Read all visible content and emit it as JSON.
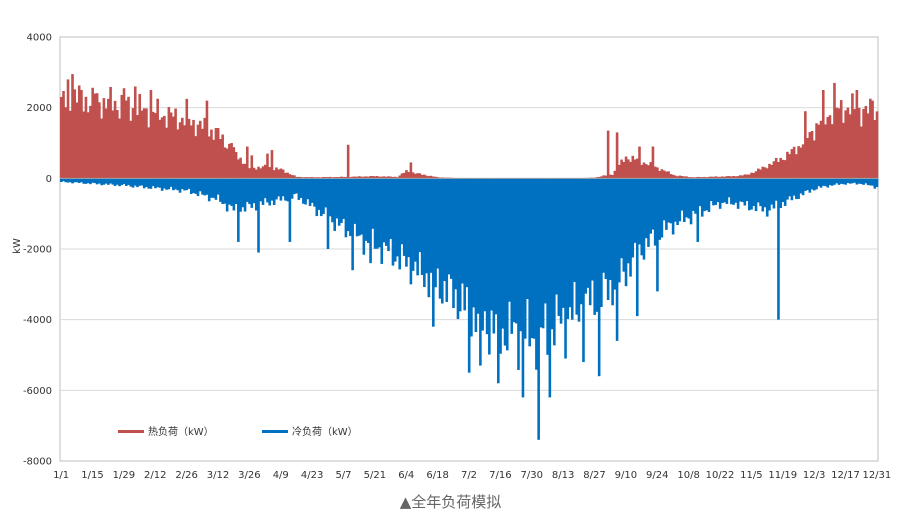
{
  "caption": "▲全年负荷模拟",
  "chart_data": {
    "type": "bar",
    "ylabel": "kW",
    "ylim": [
      -8000,
      4000
    ],
    "yticks": [
      -8000,
      -6000,
      -4000,
      -2000,
      0,
      2000,
      4000
    ],
    "xtick_labels": [
      "1/1",
      "1/15",
      "1/29",
      "2/12",
      "2/26",
      "3/12",
      "3/26",
      "4/9",
      "4/23",
      "5/7",
      "5/21",
      "6/4",
      "6/18",
      "7/2",
      "7/16",
      "7/30",
      "8/13",
      "8/27",
      "9/10",
      "9/24",
      "10/8",
      "10/22",
      "11/5",
      "11/19",
      "12/3",
      "12/17",
      "12/31"
    ],
    "xtick_days": [
      0,
      14,
      28,
      42,
      56,
      70,
      84,
      98,
      112,
      126,
      140,
      154,
      168,
      182,
      196,
      210,
      224,
      238,
      252,
      266,
      280,
      294,
      308,
      322,
      336,
      350,
      364
    ],
    "grid": true,
    "legend_position": "bottom-left",
    "series": [
      {
        "name": "热负荷（kW）",
        "color": "#c0504d",
        "anchors": [
          [
            0,
            2100
          ],
          [
            7,
            2300
          ],
          [
            14,
            2150
          ],
          [
            21,
            2150
          ],
          [
            28,
            2050
          ],
          [
            35,
            1950
          ],
          [
            42,
            1850
          ],
          [
            49,
            1750
          ],
          [
            56,
            1650
          ],
          [
            63,
            1450
          ],
          [
            70,
            1250
          ],
          [
            77,
            750
          ],
          [
            84,
            300
          ],
          [
            91,
            320
          ],
          [
            98,
            250
          ],
          [
            105,
            40
          ],
          [
            112,
            30
          ],
          [
            126,
            40
          ],
          [
            140,
            60
          ],
          [
            150,
            40
          ],
          [
            154,
            200
          ],
          [
            160,
            120
          ],
          [
            168,
            30
          ],
          [
            180,
            0
          ],
          [
            230,
            0
          ],
          [
            238,
            20
          ],
          [
            246,
            120
          ],
          [
            252,
            600
          ],
          [
            258,
            500
          ],
          [
            266,
            300
          ],
          [
            274,
            80
          ],
          [
            282,
            30
          ],
          [
            294,
            50
          ],
          [
            300,
            60
          ],
          [
            306,
            100
          ],
          [
            312,
            260
          ],
          [
            318,
            450
          ],
          [
            324,
            650
          ],
          [
            330,
            950
          ],
          [
            336,
            1400
          ],
          [
            343,
            1850
          ],
          [
            350,
            2000
          ],
          [
            357,
            1900
          ],
          [
            364,
            1850
          ]
        ],
        "spikes": [
          [
            3,
            2800
          ],
          [
            5,
            2950
          ],
          [
            15,
            2400
          ],
          [
            28,
            2550
          ],
          [
            33,
            2600
          ],
          [
            40,
            2500
          ],
          [
            56,
            2250
          ],
          [
            65,
            2200
          ],
          [
            76,
            1000
          ],
          [
            83,
            900
          ],
          [
            85,
            650
          ],
          [
            92,
            700
          ],
          [
            94,
            800
          ],
          [
            128,
            950
          ],
          [
            156,
            450
          ],
          [
            244,
            1350
          ],
          [
            248,
            1300
          ],
          [
            258,
            900
          ],
          [
            264,
            900
          ],
          [
            332,
            1900
          ],
          [
            340,
            2500
          ],
          [
            345,
            2700
          ],
          [
            355,
            2500
          ],
          [
            362,
            2200
          ]
        ]
      },
      {
        "name": "冷负荷（kW）",
        "color": "#0070c0",
        "anchors": [
          [
            0,
            -100
          ],
          [
            28,
            -200
          ],
          [
            56,
            -350
          ],
          [
            70,
            -600
          ],
          [
            77,
            -900
          ],
          [
            84,
            -800
          ],
          [
            91,
            -700
          ],
          [
            98,
            -600
          ],
          [
            105,
            -500
          ],
          [
            112,
            -800
          ],
          [
            119,
            -1100
          ],
          [
            126,
            -1400
          ],
          [
            133,
            -1700
          ],
          [
            140,
            -1900
          ],
          [
            147,
            -2100
          ],
          [
            154,
            -2400
          ],
          [
            161,
            -2700
          ],
          [
            168,
            -3000
          ],
          [
            175,
            -3300
          ],
          [
            182,
            -3700
          ],
          [
            189,
            -4100
          ],
          [
            196,
            -4300
          ],
          [
            203,
            -4400
          ],
          [
            210,
            -4500
          ],
          [
            217,
            -4300
          ],
          [
            224,
            -4000
          ],
          [
            231,
            -3700
          ],
          [
            238,
            -3400
          ],
          [
            245,
            -3100
          ],
          [
            252,
            -2600
          ],
          [
            259,
            -2000
          ],
          [
            266,
            -1600
          ],
          [
            273,
            -1300
          ],
          [
            280,
            -1100
          ],
          [
            287,
            -900
          ],
          [
            294,
            -700
          ],
          [
            301,
            -700
          ],
          [
            308,
            -800
          ],
          [
            315,
            -900
          ],
          [
            322,
            -700
          ],
          [
            329,
            -500
          ],
          [
            336,
            -300
          ],
          [
            343,
            -200
          ],
          [
            350,
            -150
          ],
          [
            357,
            -150
          ],
          [
            364,
            -250
          ]
        ],
        "spikes": [
          [
            79,
            -1800
          ],
          [
            88,
            -2100
          ],
          [
            102,
            -1800
          ],
          [
            119,
            -2000
          ],
          [
            130,
            -2600
          ],
          [
            138,
            -2400
          ],
          [
            156,
            -3000
          ],
          [
            166,
            -4200
          ],
          [
            182,
            -5500
          ],
          [
            187,
            -5300
          ],
          [
            195,
            -5800
          ],
          [
            206,
            -6200
          ],
          [
            213,
            -7400
          ],
          [
            218,
            -6200
          ],
          [
            225,
            -5100
          ],
          [
            233,
            -5200
          ],
          [
            240,
            -5600
          ],
          [
            248,
            -4600
          ],
          [
            257,
            -3900
          ],
          [
            266,
            -3200
          ],
          [
            284,
            -1800
          ],
          [
            320,
            -4000
          ]
        ]
      }
    ]
  }
}
